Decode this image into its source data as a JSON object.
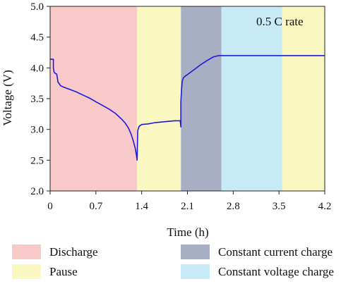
{
  "chart_data": {
    "type": "line",
    "xlabel": "Time (h)",
    "ylabel": "Voltage (V)",
    "xlim": [
      0,
      4.2
    ],
    "ylim": [
      2.0,
      5.0
    ],
    "x_ticks": [
      "0",
      "0.7",
      "1.4",
      "2.1",
      "2.8",
      "3.5",
      "4.2"
    ],
    "y_ticks": [
      "2.0",
      "2.5",
      "3.0",
      "3.5",
      "4.0",
      "4.5",
      "5.0"
    ],
    "annotation": "0.5 C rate",
    "line_color": "#1a1adb",
    "background_bands": [
      {
        "label": "Discharge",
        "start": 0,
        "end": 1.33,
        "color": "#f9c8c8"
      },
      {
        "label": "Pause",
        "start": 1.33,
        "end": 2.0,
        "color": "#fbf7c1"
      },
      {
        "label": "Constant current charge",
        "start": 2.0,
        "end": 2.62,
        "color": "#a8afc4"
      },
      {
        "label": "Constant voltage charge",
        "start": 2.62,
        "end": 3.55,
        "color": "#c8eaf6"
      },
      {
        "label": "Pause",
        "start": 3.55,
        "end": 4.2,
        "color": "#fbf7c1"
      }
    ],
    "legend": [
      {
        "label": "Discharge",
        "color": "#f9c8c8"
      },
      {
        "label": "Pause",
        "color": "#fbf7c1"
      },
      {
        "label": "Constant current charge",
        "color": "#a8afc4"
      },
      {
        "label": "Constant voltage charge",
        "color": "#c8eaf6"
      }
    ],
    "series": [
      {
        "x": [
          0.0,
          0.05,
          0.05,
          0.06,
          0.08,
          0.1,
          0.11,
          0.12,
          0.14,
          0.16,
          0.2,
          0.3,
          0.4,
          0.5,
          0.6,
          0.7,
          0.8,
          0.9,
          1.0,
          1.1,
          1.15,
          1.2,
          1.24,
          1.27,
          1.3,
          1.32,
          1.33,
          1.33,
          1.34,
          1.36,
          1.4,
          1.5,
          1.6,
          1.7,
          1.8,
          1.9,
          1.99,
          2.0,
          2.0,
          2.01,
          2.02,
          2.04,
          2.07,
          2.1,
          2.15,
          2.2,
          2.3,
          2.4,
          2.5,
          2.58,
          2.62,
          2.7,
          2.8,
          3.0,
          3.3,
          3.6,
          4.0,
          4.2
        ],
        "y": [
          4.14,
          4.14,
          4.0,
          3.93,
          3.91,
          3.9,
          3.84,
          3.77,
          3.74,
          3.71,
          3.69,
          3.65,
          3.61,
          3.56,
          3.51,
          3.45,
          3.39,
          3.33,
          3.26,
          3.16,
          3.1,
          3.02,
          2.92,
          2.82,
          2.7,
          2.58,
          2.5,
          2.5,
          2.98,
          3.05,
          3.08,
          3.09,
          3.11,
          3.12,
          3.13,
          3.14,
          3.14,
          3.04,
          3.45,
          3.66,
          3.78,
          3.84,
          3.87,
          3.89,
          3.93,
          3.97,
          4.05,
          4.12,
          4.18,
          4.2,
          4.2,
          4.2,
          4.2,
          4.2,
          4.2,
          4.2,
          4.2,
          4.2
        ]
      }
    ]
  }
}
